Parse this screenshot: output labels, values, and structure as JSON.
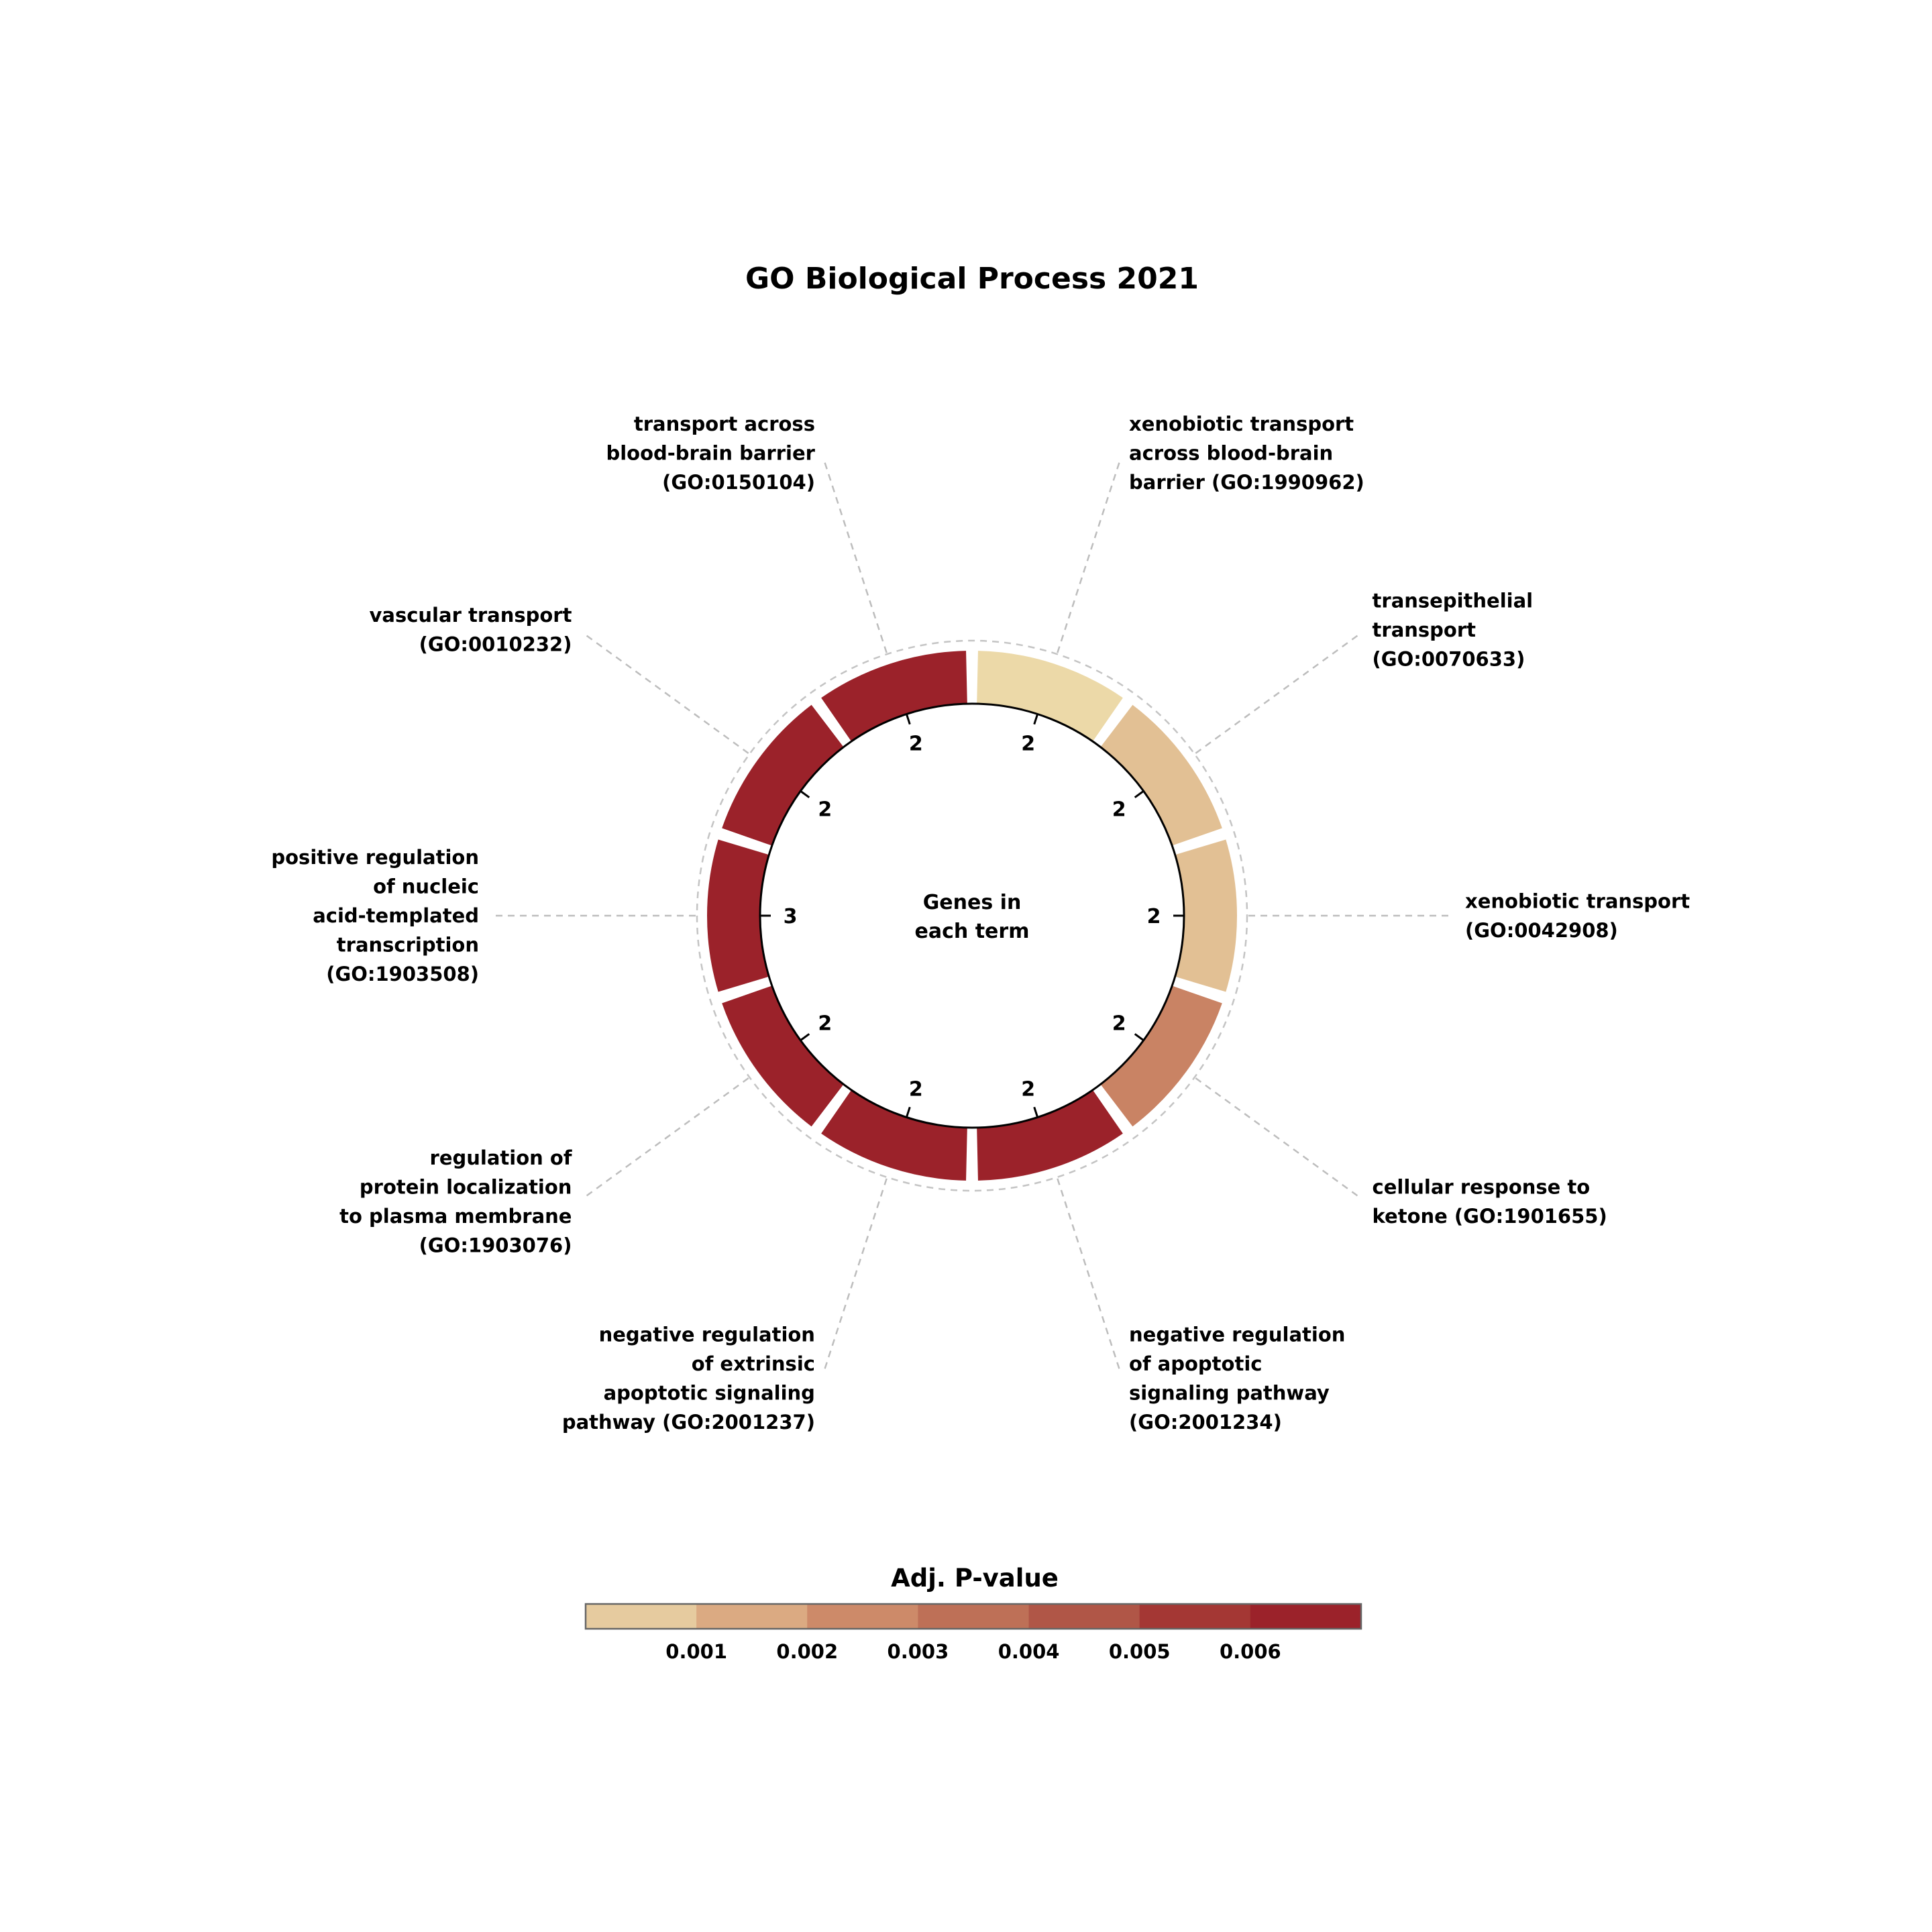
{
  "chart_data": {
    "type": "donut",
    "title": "GO Biological Process 2021",
    "center_label": [
      "Genes in",
      "each term"
    ],
    "value_label": "Genes in each term",
    "color_label": "Adj. P-value",
    "terms": [
      {
        "name": [
          "xenobiotic transport",
          "across blood-brain",
          "barrier (GO:1990962)"
        ],
        "genes": 2,
        "color": "#ecd9a8"
      },
      {
        "name": [
          "transepithelial",
          "transport",
          "(GO:0070633)"
        ],
        "genes": 2,
        "color": "#e2c094"
      },
      {
        "name": [
          "xenobiotic transport",
          "(GO:0042908)"
        ],
        "genes": 2,
        "color": "#e2c094"
      },
      {
        "name": [
          "cellular response to",
          "ketone (GO:1901655)"
        ],
        "genes": 2,
        "color": "#c98364"
      },
      {
        "name": [
          "negative regulation",
          "of apoptotic",
          "signaling pathway",
          "(GO:2001234)"
        ],
        "genes": 2,
        "color": "#9b222a"
      },
      {
        "name": [
          "negative regulation",
          "of extrinsic",
          "apoptotic signaling",
          "pathway (GO:2001237)"
        ],
        "genes": 2,
        "color": "#9b222a"
      },
      {
        "name": [
          "regulation of",
          "protein localization",
          "to plasma membrane",
          "(GO:1903076)"
        ],
        "genes": 2,
        "color": "#9b222a"
      },
      {
        "name": [
          "positive regulation",
          "of nucleic",
          "acid-templated",
          "transcription",
          "(GO:1903508)"
        ],
        "genes": 3,
        "color": "#9b222a"
      },
      {
        "name": [
          "vascular transport",
          "(GO:0010232)"
        ],
        "genes": 2,
        "color": "#9b222a"
      },
      {
        "name": [
          "transport across",
          "blood-brain barrier",
          "(GO:0150104)"
        ],
        "genes": 2,
        "color": "#9b222a"
      }
    ],
    "colorbar": {
      "title": "Adj. P-value",
      "colors": [
        "#e6cb9f",
        "#dbaa82",
        "#cd8a69",
        "#be7057",
        "#b05647",
        "#a43734",
        "#9b222a"
      ],
      "ticks": [
        "0.001",
        "0.002",
        "0.003",
        "0.004",
        "0.005",
        "0.006"
      ]
    }
  }
}
